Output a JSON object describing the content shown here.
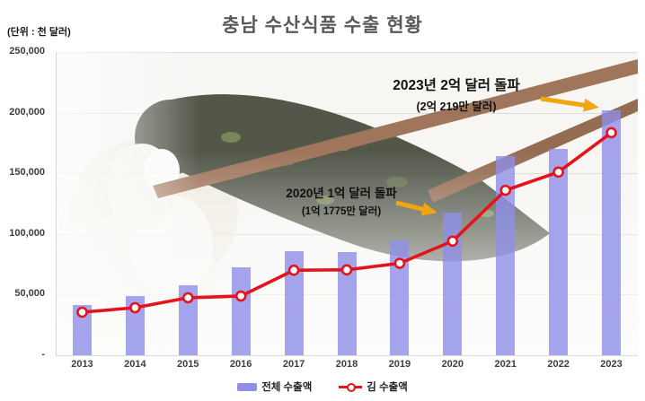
{
  "header": {
    "title": "충남 수산식품 수출 현황",
    "unit_label": "(단위 : 천 달러)"
  },
  "chart_data": {
    "type": "bar",
    "title": "충남 수산식품 수출 현황",
    "unit": "천 달러",
    "categories": [
      "2013",
      "2014",
      "2015",
      "2016",
      "2017",
      "2018",
      "2019",
      "2020",
      "2021",
      "2022",
      "2023"
    ],
    "series": [
      {
        "name": "전체 수출액",
        "type": "bar",
        "color": "#8f8fe8",
        "values": [
          41500,
          48500,
          57500,
          72500,
          85500,
          85200,
          95000,
          117750,
          164500,
          170400,
          202190
        ]
      },
      {
        "name": "김 수출액",
        "type": "line",
        "color": "#e4131c",
        "values": [
          35500,
          39200,
          47400,
          48800,
          70100,
          70400,
          75800,
          94100,
          136000,
          151000,
          183500
        ]
      }
    ],
    "ylim": [
      0,
      250000
    ],
    "yticks": [
      "250,000",
      "200,000",
      "150,000",
      "100,000",
      "50,000",
      "-"
    ],
    "grid": true,
    "legend_position": "bottom"
  },
  "annotations": [
    {
      "title": "2023년 2억 달러 돌파",
      "subtitle": "(2억 219만 달러)"
    },
    {
      "title": "2020년 1억 달러 돌파",
      "subtitle": "(1억 1775만 달러)"
    }
  ],
  "colors": {
    "bar": "#8f8fe8",
    "line": "#e4131c",
    "arrow": "#f2a60d",
    "grid": "#dcdbd7",
    "title": "#595959",
    "axis_text": "#3d3d3d"
  }
}
